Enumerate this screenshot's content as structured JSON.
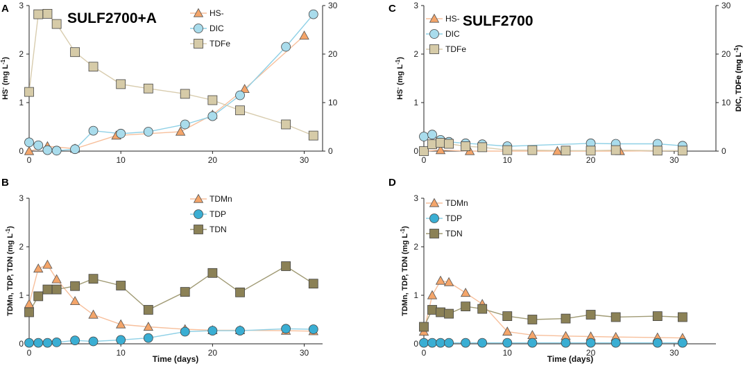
{
  "figure": {
    "x_axis_label": "Time (days)",
    "colors": {
      "triangle_fill": "#F4A56A",
      "triangle_line": "#F7BF9B",
      "circle_fill_top": "#A9DCEC",
      "circle_fill_bottom": "#3AAED3",
      "circle_line": "#8ED0E6",
      "square_fill_top": "#D6CBA8",
      "square_fill_bottom": "#8B8156",
      "square_line_top": "#D8CCAE",
      "square_line_bottom": "#A09A74"
    }
  },
  "chart_data": [
    {
      "type": "scatter",
      "panel": "A",
      "title": "SULF2700+A",
      "xlabel": "",
      "ylabel_left": "HS- (mg L-1)",
      "ylabel_right": "DIC, TDFe (mg L-1)",
      "xlim": [
        0,
        32
      ],
      "ylim": [
        0,
        3
      ],
      "ylim_right": [
        0,
        30
      ],
      "xticks": [
        0,
        10,
        20,
        30
      ],
      "yticks": [
        0,
        1,
        2,
        3
      ],
      "yticks_right": [
        0,
        10,
        20,
        30
      ],
      "legend": "top-right",
      "series": [
        {
          "name": "HS-",
          "marker": "triangle",
          "axis": "left",
          "x": [
            0,
            2,
            5,
            9.5,
            16.5,
            20,
            23.5,
            30
          ],
          "y": [
            0.0,
            0.1,
            0.05,
            0.32,
            0.4,
            0.75,
            1.28,
            2.38
          ]
        },
        {
          "name": "DIC",
          "marker": "circle",
          "axis": "right",
          "x": [
            0,
            1,
            2,
            3,
            5,
            7,
            10,
            13,
            17,
            20,
            23,
            28,
            31
          ],
          "y": [
            1.8,
            1.2,
            0.2,
            0.1,
            0.4,
            4.2,
            3.6,
            4.0,
            5.5,
            7.2,
            11.5,
            21.5,
            28.2
          ]
        },
        {
          "name": "TDFe",
          "marker": "square",
          "axis": "right",
          "x": [
            0,
            1,
            2,
            3,
            5,
            7,
            10,
            13,
            17,
            20,
            23,
            28,
            31
          ],
          "y": [
            12.2,
            28.2,
            28.3,
            26.2,
            20.4,
            17.4,
            13.8,
            12.9,
            11.8,
            10.5,
            8.4,
            5.5,
            3.2
          ]
        }
      ]
    },
    {
      "type": "scatter",
      "panel": "B",
      "title": "",
      "xlabel": "Time (days)",
      "ylabel_left": "TDMn, TDP, TDN (mg L-1)",
      "xlim": [
        0,
        32
      ],
      "ylim": [
        0,
        3
      ],
      "xticks": [
        0,
        10,
        20,
        30
      ],
      "yticks": [
        0,
        1,
        2,
        3
      ],
      "legend": "top-right",
      "series": [
        {
          "name": "TDMn",
          "marker": "triangle",
          "axis": "left",
          "x": [
            0,
            1,
            2,
            3,
            5,
            7,
            10,
            13,
            17,
            20,
            23,
            28,
            31
          ],
          "y": [
            0.82,
            1.55,
            1.63,
            1.33,
            0.88,
            0.6,
            0.4,
            0.35,
            0.3,
            0.28,
            0.28,
            0.27,
            0.26
          ]
        },
        {
          "name": "TDP",
          "marker": "circle",
          "axis": "left",
          "x": [
            0,
            1,
            2,
            3,
            5,
            7,
            10,
            13,
            17,
            20,
            23,
            28,
            31
          ],
          "y": [
            0.02,
            0.02,
            0.02,
            0.03,
            0.07,
            0.05,
            0.08,
            0.12,
            0.25,
            0.27,
            0.27,
            0.31,
            0.3
          ]
        },
        {
          "name": "TDN",
          "marker": "square",
          "axis": "left",
          "x": [
            0,
            1,
            2,
            3,
            5,
            7,
            10,
            13,
            17,
            20,
            23,
            28,
            31
          ],
          "y": [
            0.65,
            0.98,
            1.12,
            1.12,
            1.19,
            1.34,
            1.2,
            0.7,
            1.07,
            1.46,
            1.06,
            1.6,
            1.24
          ]
        }
      ]
    },
    {
      "type": "scatter",
      "panel": "C",
      "title": "SULF2700",
      "xlabel": "",
      "ylabel_left": "HS- (mg L-1)",
      "ylabel_right": "DIC, TDFe (mg L-1)",
      "xlim": [
        0,
        35
      ],
      "ylim": [
        0,
        3
      ],
      "ylim_right": [
        0,
        30
      ],
      "xticks": [
        0,
        10,
        20,
        30
      ],
      "yticks": [
        0,
        1,
        2,
        3
      ],
      "yticks_right": [
        0,
        10,
        20,
        30
      ],
      "legend": "top-center",
      "series": [
        {
          "name": "HS-",
          "marker": "triangle",
          "axis": "left",
          "x": [
            0,
            2,
            5.5,
            16,
            23.5,
            31
          ],
          "y": [
            0.0,
            0.02,
            0.0,
            0.0,
            0.0,
            0.01
          ]
        },
        {
          "name": "DIC",
          "marker": "circle",
          "axis": "right",
          "x": [
            0,
            1,
            2,
            3,
            5,
            7,
            10,
            20,
            23,
            28,
            31
          ],
          "y": [
            3.0,
            3.4,
            2.3,
            1.9,
            1.6,
            1.4,
            1.0,
            1.6,
            1.5,
            1.5,
            1.1
          ]
        },
        {
          "name": "TDFe",
          "marker": "square",
          "axis": "right",
          "x": [
            0,
            1,
            2,
            3,
            5,
            7,
            10,
            13,
            17,
            20,
            23,
            28,
            31
          ],
          "y": [
            0.0,
            1.4,
            1.7,
            1.5,
            1.0,
            0.8,
            0.2,
            0.2,
            0.1,
            0.1,
            0.2,
            0.1,
            0.1
          ]
        }
      ]
    },
    {
      "type": "scatter",
      "panel": "D",
      "title": "",
      "xlabel": "Time (days)",
      "ylabel_left": "TDMn, TDP, TDN (mg L-1)",
      "xlim": [
        0,
        35
      ],
      "ylim": [
        0,
        3
      ],
      "xticks": [
        0,
        10,
        20,
        30
      ],
      "yticks": [
        0,
        1,
        2,
        3
      ],
      "legend": "top-center",
      "series": [
        {
          "name": "TDMn",
          "marker": "triangle",
          "axis": "left",
          "x": [
            0,
            1,
            2,
            3,
            5,
            7,
            10,
            13,
            17,
            20,
            23,
            28,
            31
          ],
          "y": [
            0.25,
            1.0,
            1.3,
            1.27,
            1.05,
            0.82,
            0.25,
            0.18,
            0.16,
            0.15,
            0.14,
            0.13,
            0.12
          ]
        },
        {
          "name": "TDP",
          "marker": "circle",
          "axis": "left",
          "x": [
            0,
            1,
            2,
            3,
            5,
            7,
            10,
            13,
            17,
            20,
            23,
            28,
            31
          ],
          "y": [
            0.02,
            0.02,
            0.02,
            0.02,
            0.02,
            0.02,
            0.02,
            0.02,
            0.02,
            0.02,
            0.02,
            0.02,
            0.02
          ]
        },
        {
          "name": "TDN",
          "marker": "square",
          "axis": "left",
          "x": [
            0,
            1,
            2,
            3,
            5,
            7,
            10,
            13,
            17,
            20,
            23,
            28,
            31
          ],
          "y": [
            0.35,
            0.7,
            0.65,
            0.62,
            0.77,
            0.72,
            0.57,
            0.5,
            0.52,
            0.6,
            0.55,
            0.57,
            0.55
          ]
        }
      ]
    }
  ]
}
